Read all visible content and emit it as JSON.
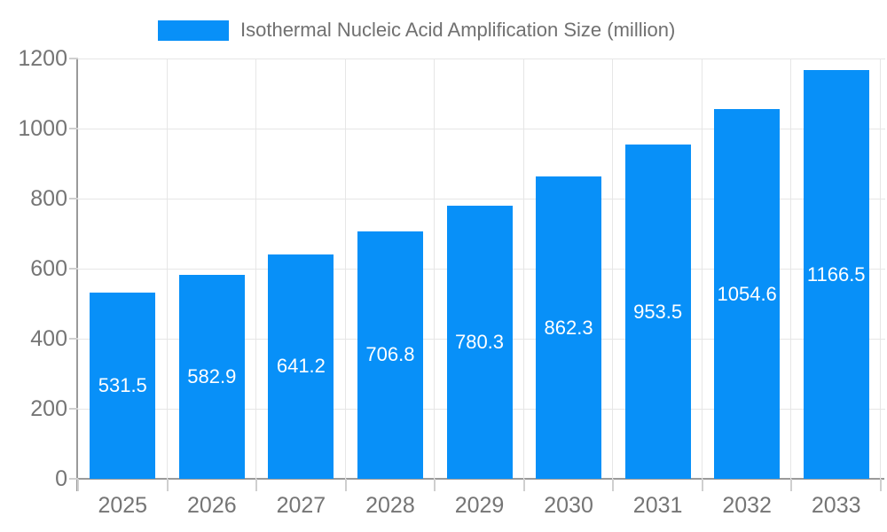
{
  "legend": {
    "label": "Isothermal Nucleic Acid Amplification Size (million)"
  },
  "colors": {
    "bar": "#0890f8",
    "grid": "#e6e6e6",
    "axis_line": "#9a9a9a",
    "tick": "#cfcfcf",
    "axis_text": "#757575",
    "value_text": "#ffffff",
    "legend_text": "#707070",
    "background": "#ffffff"
  },
  "chart_data": {
    "type": "bar",
    "title": "Isothermal Nucleic Acid Amplification Size (million)",
    "series_name": "Isothermal Nucleic Acid Amplification Size (million)",
    "categories": [
      "2025",
      "2026",
      "2027",
      "2028",
      "2029",
      "2030",
      "2031",
      "2032",
      "2033"
    ],
    "values": [
      531.5,
      582.9,
      641.2,
      706.8,
      780.3,
      862.3,
      953.5,
      1054.6,
      1166.5
    ],
    "value_labels": [
      "531.5",
      "582.9",
      "641.2",
      "706.8",
      "780.3",
      "862.3",
      "953.5",
      "1054.6",
      "1166.5"
    ],
    "xlabel": "",
    "ylabel": "",
    "ylim": [
      0,
      1200
    ],
    "y_ticks": [
      0,
      200,
      400,
      600,
      800,
      1000,
      1200
    ],
    "grid": true,
    "legend_position": "top"
  }
}
